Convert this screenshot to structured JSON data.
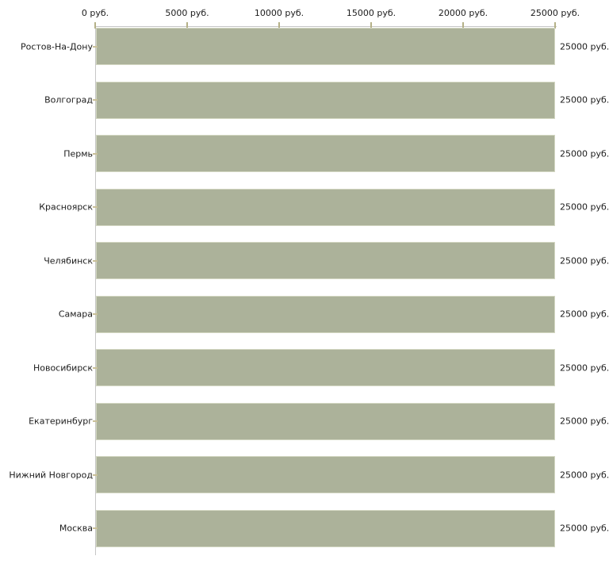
{
  "chart_data": {
    "type": "bar",
    "orientation": "horizontal",
    "title": "",
    "xlabel": "",
    "ylabel": "",
    "unit": "руб.",
    "grid": false,
    "legend": false,
    "x_axis": {
      "position": "top",
      "range": [
        0,
        25000
      ],
      "ticks": [
        0,
        5000,
        10000,
        15000,
        20000,
        25000
      ],
      "tick_labels": [
        "0 руб.",
        "5000 руб.",
        "10000 руб.",
        "15000 руб.",
        "20000 руб.",
        "25000 руб."
      ]
    },
    "categories": [
      "Ростов-На-Дону",
      "Волгоград",
      "Пермь",
      "Красноярск",
      "Челябинск",
      "Самара",
      "Новосибирск",
      "Екатеринбург",
      "Нижний Новгород",
      "Москва"
    ],
    "values": [
      25000,
      25000,
      25000,
      25000,
      25000,
      25000,
      25000,
      25000,
      25000,
      25000
    ],
    "value_labels": [
      "25000 руб.",
      "25000 руб.",
      "25000 руб.",
      "25000 руб.",
      "25000 руб.",
      "25000 руб.",
      "25000 руб.",
      "25000 руб.",
      "25000 руб.",
      "25000 руб."
    ],
    "colors": {
      "bar_fill": "#acb29a",
      "bar_border": "#d3d7c2",
      "axis_line": "#c6c6c6",
      "tick_mark": "#b5b188",
      "category_tick": "#c9c098",
      "text": "#1c1c1c"
    }
  }
}
